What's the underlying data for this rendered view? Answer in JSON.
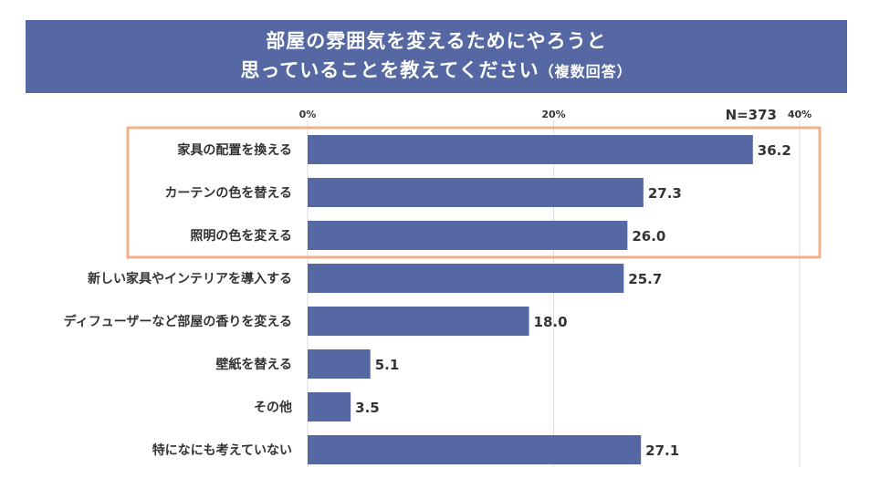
{
  "title": {
    "line1": "部屋の雰囲気を変えるためにやろうと",
    "line2_main": "思っていることを教えてください",
    "line2_sub": "（複数回答）"
  },
  "sample_label": "N=373",
  "colors": {
    "title_bg": "#5668a3",
    "bar": "#5668a3",
    "highlight_border": "#efb08a",
    "text": "#333333"
  },
  "chart_data": {
    "type": "bar",
    "orientation": "horizontal",
    "categories": [
      "家具の配置を換える",
      "カーテンの色を替える",
      "照明の色を変える",
      "新しい家具やインテリアを導入する",
      "ディフューザーなど部屋の香りを変える",
      "壁紙を替える",
      "その他",
      "特になにも考えていない"
    ],
    "values": [
      36.2,
      27.3,
      26.0,
      25.7,
      18.0,
      5.1,
      3.5,
      27.1
    ],
    "value_labels": [
      "36.2",
      "27.3",
      "26.0",
      "25.7",
      "18.0",
      "5.1",
      "3.5",
      "27.1"
    ],
    "x_ticks": [
      0,
      20,
      40
    ],
    "x_tick_labels": [
      "0%",
      "20%",
      "40%"
    ],
    "xlim": [
      0,
      40
    ],
    "grid": true,
    "highlighted_categories": [
      0,
      1,
      2
    ]
  }
}
